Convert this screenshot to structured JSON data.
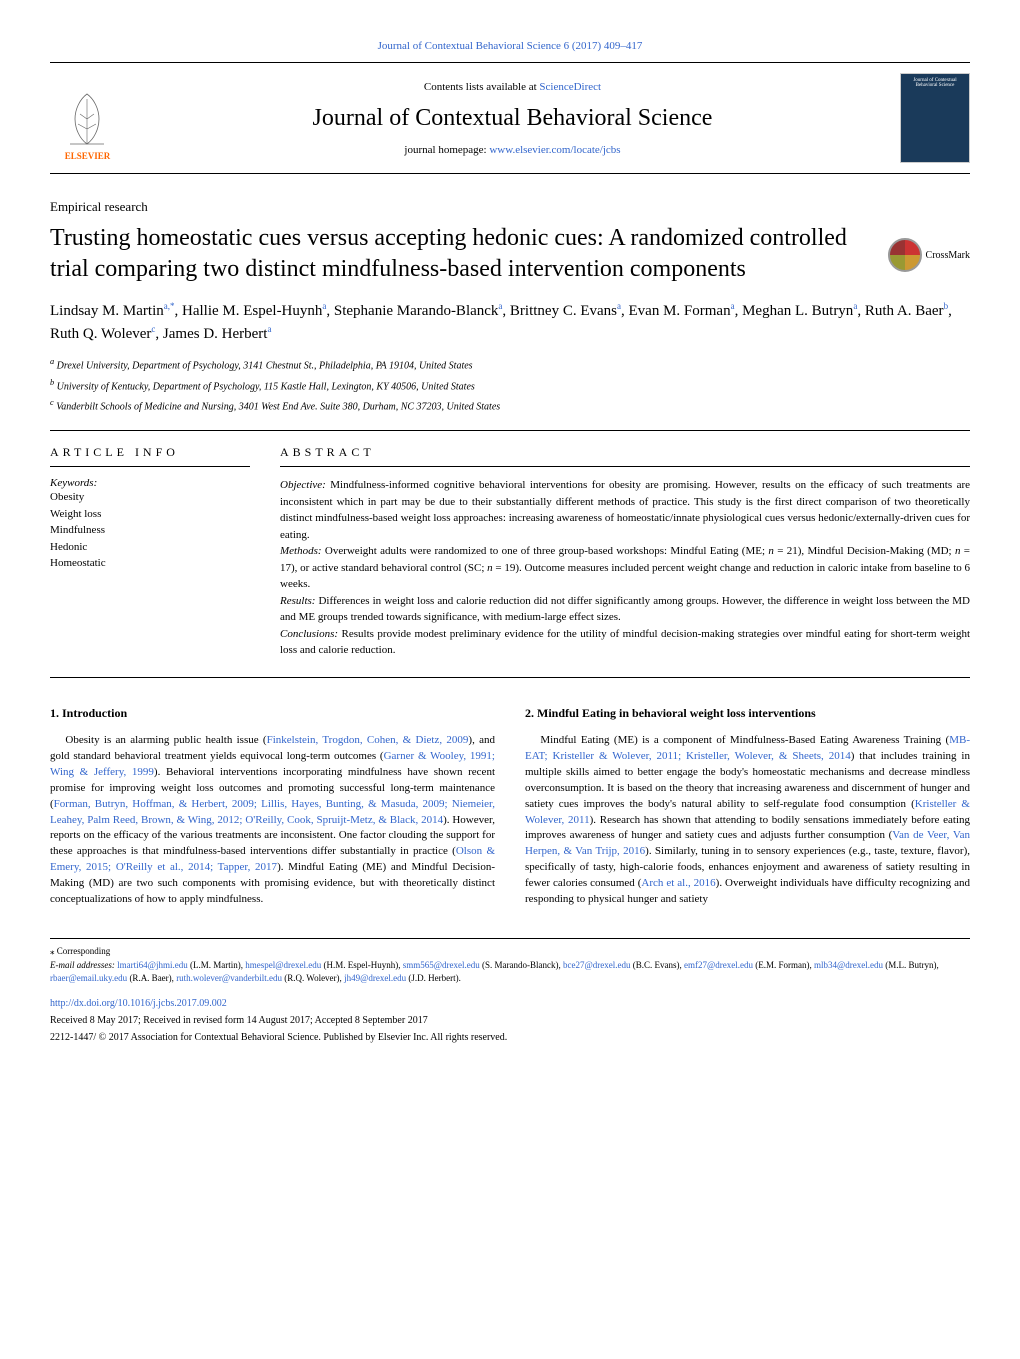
{
  "top_citation": "Journal of Contextual Behavioral Science 6 (2017) 409–417",
  "header": {
    "contents_text": "Contents lists available at ",
    "contents_link": "ScienceDirect",
    "journal_name": "Journal of Contextual Behavioral Science",
    "homepage_label": "journal homepage: ",
    "homepage_link": "www.elsevier.com/locate/jcbs",
    "publisher_name": "ELSEVIER",
    "cover_text": "Journal of Contextual Behavioral Science"
  },
  "article_type": "Empirical research",
  "title": "Trusting homeostatic cues versus accepting hedonic cues: A randomized controlled trial comparing two distinct mindfulness-based intervention components",
  "crossmark_label": "CrossMark",
  "authors_html": "Lindsay M. Martin<sup>a,*</sup>, Hallie M. Espel-Huynh<sup>a</sup>, Stephanie Marando-Blanck<sup>a</sup>, Brittney C. Evans<sup>a</sup>, Evan M. Forman<sup>a</sup>, Meghan L. Butryn<sup>a</sup>, Ruth A. Baer<sup>b</sup>, Ruth Q. Wolever<sup>c</sup>, James D. Herbert<sup>a</sup>",
  "affiliations": [
    "a Drexel University, Department of Psychology, 3141 Chestnut St., Philadelphia, PA 19104, United States",
    "b University of Kentucky, Department of Psychology, 115 Kastle Hall, Lexington, KY 40506, United States",
    "c Vanderbilt Schools of Medicine and Nursing, 3401 West End Ave. Suite 380, Durham, NC 37203, United States"
  ],
  "info_heading": "ARTICLE INFO",
  "keywords_label": "Keywords:",
  "keywords": [
    "Obesity",
    "Weight loss",
    "Mindfulness",
    "Hedonic",
    "Homeostatic"
  ],
  "abstract_heading": "ABSTRACT",
  "abstract": {
    "objective_label": "Objective:",
    "objective": "Mindfulness-informed cognitive behavioral interventions for obesity are promising. However, results on the efficacy of such treatments are inconsistent which in part may be due to their substantially different methods of practice. This study is the first direct comparison of two theoretically distinct mindfulness-based weight loss approaches: increasing awareness of homeostatic/innate physiological cues versus hedonic/externally-driven cues for eating.",
    "methods_label": "Methods:",
    "methods": "Overweight adults were randomized to one of three group-based workshops: Mindful Eating (ME; n = 21), Mindful Decision-Making (MD; n = 17), or active standard behavioral control (SC; n = 19). Outcome measures included percent weight change and reduction in caloric intake from baseline to 6 weeks.",
    "results_label": "Results:",
    "results": "Differences in weight loss and calorie reduction did not differ significantly among groups. However, the difference in weight loss between the MD and ME groups trended towards significance, with medium-large effect sizes.",
    "conclusions_label": "Conclusions:",
    "conclusions": "Results provide modest preliminary evidence for the utility of mindful decision-making strategies over mindful eating for short-term weight loss and calorie reduction."
  },
  "sections": {
    "s1_heading": "1. Introduction",
    "s1_body": "Obesity is an alarming public health issue (Finkelstein, Trogdon, Cohen, & Dietz, 2009), and gold standard behavioral treatment yields equivocal long-term outcomes (Garner & Wooley, 1991; Wing & Jeffery, 1999). Behavioral interventions incorporating mindfulness have shown recent promise for improving weight loss outcomes and promoting successful long-term maintenance (Forman, Butryn, Hoffman, & Herbert, 2009; Lillis, Hayes, Bunting, & Masuda, 2009; Niemeier, Leahey, Palm Reed, Brown, & Wing, 2012; O'Reilly, Cook, Spruijt-Metz, & Black, 2014). However, reports on the efficacy of the various treatments are inconsistent. One factor clouding the support for these approaches is that mindfulness-based interventions differ substantially in practice (Olson & Emery, 2015; O'Reilly et al., 2014; Tapper, 2017). Mindful Eating (ME) and Mindful Decision-Making (MD) are two such components with promising evidence, but with theoretically distinct conceptualizations of how to apply mindfulness.",
    "s2_heading": "2. Mindful Eating in behavioral weight loss interventions",
    "s2_body": "Mindful Eating (ME) is a component of Mindfulness-Based Eating Awareness Training (MB-EAT; Kristeller & Wolever, 2011; Kristeller, Wolever, & Sheets, 2014) that includes training in multiple skills aimed to better engage the body's homeostatic mechanisms and decrease mindless overconsumption. It is based on the theory that increasing awareness and discernment of hunger and satiety cues improves the body's natural ability to self-regulate food consumption (Kristeller & Wolever, 2011). Research has shown that attending to bodily sensations immediately before eating improves awareness of hunger and satiety cues and adjusts further consumption (Van de Veer, Van Herpen, & Van Trijp, 2016). Similarly, tuning in to sensory experiences (e.g., taste, texture, flavor), specifically of tasty, high-calorie foods, enhances enjoyment and awareness of satiety resulting in fewer calories consumed (Arch et al., 2016). Overweight individuals have difficulty recognizing and responding to physical hunger and satiety"
  },
  "footnotes": {
    "corresponding": "⁎ Corresponding",
    "email_label": "E-mail addresses:",
    "emails": [
      {
        "addr": "lmarti64@jhmi.edu",
        "name": "(L.M. Martin)"
      },
      {
        "addr": "hmespel@drexel.edu",
        "name": "(H.M. Espel-Huynh)"
      },
      {
        "addr": "smm565@drexel.edu",
        "name": "(S. Marando-Blanck)"
      },
      {
        "addr": "bce27@drexel.edu",
        "name": "(B.C. Evans)"
      },
      {
        "addr": "emf27@drexel.edu",
        "name": "(E.M. Forman)"
      },
      {
        "addr": "mlb34@drexel.edu",
        "name": "(M.L. Butryn)"
      },
      {
        "addr": "rbaer@email.uky.edu",
        "name": "(R.A. Baer)"
      },
      {
        "addr": "ruth.wolever@vanderbilt.edu",
        "name": "(R.Q. Wolever)"
      },
      {
        "addr": "jh49@drexel.edu",
        "name": "(J.D. Herbert)."
      }
    ],
    "doi": "http://dx.doi.org/10.1016/j.jcbs.2017.09.002",
    "received": "Received 8 May 2017; Received in revised form 14 August 2017; Accepted 8 September 2017",
    "copyright": "2212-1447/ © 2017 Association for Contextual Behavioral Science. Published by Elsevier Inc. All rights reserved."
  },
  "colors": {
    "link": "#3366cc",
    "elsevier_orange": "#ff6600",
    "cover_bg": "#1a3a5a"
  }
}
